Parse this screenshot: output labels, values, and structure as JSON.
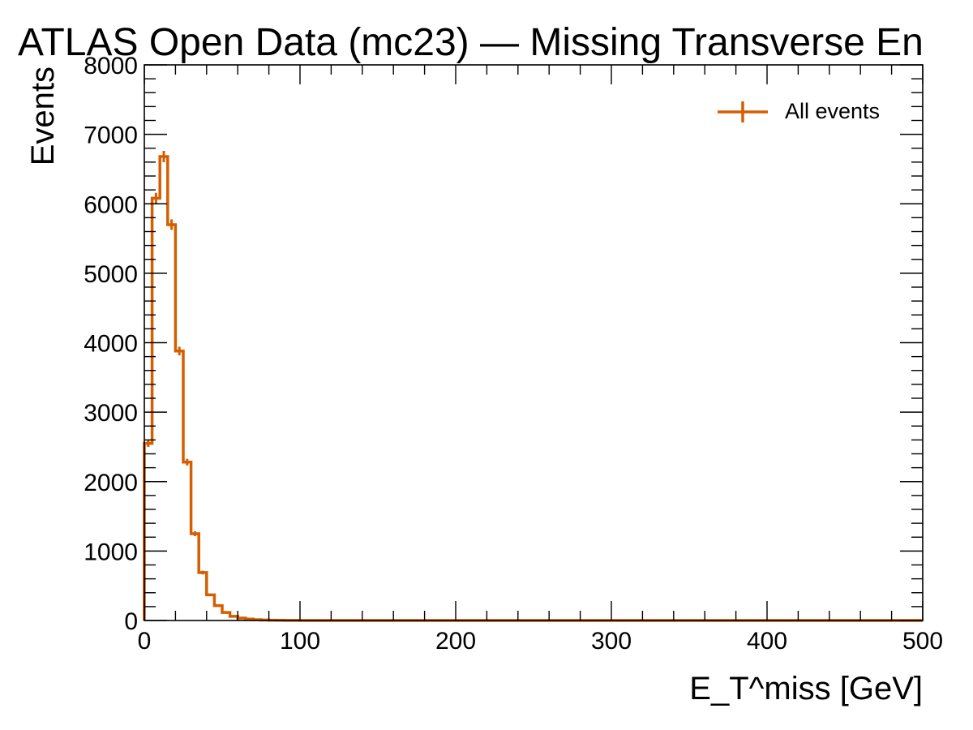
{
  "chart_data": {
    "type": "histogram",
    "title": "ATLAS Open Data (mc23) — Missing Transverse En",
    "xlabel": "E_T^miss [GeV]",
    "ylabel": "Events",
    "xlim": [
      0,
      500
    ],
    "ylim": [
      0,
      8000
    ],
    "xticks": [
      "0",
      "100",
      "200",
      "300",
      "400",
      "500"
    ],
    "yticks": [
      "0",
      "1000",
      "2000",
      "3000",
      "4000",
      "5000",
      "6000",
      "7000",
      "8000"
    ],
    "legend_position": "top-right",
    "series": [
      {
        "name": "All events",
        "color": "#d55e00",
        "bin_edges": [
          0,
          5,
          10,
          15,
          20,
          25,
          30,
          35,
          40,
          45,
          50,
          55,
          60,
          65,
          70,
          75,
          80,
          85,
          90,
          95,
          100,
          500
        ],
        "values": [
          2550,
          6080,
          6680,
          5700,
          3880,
          2280,
          1250,
          690,
          370,
          215,
          115,
          60,
          35,
          20,
          12,
          8,
          5,
          3,
          2,
          1,
          0
        ]
      }
    ]
  }
}
